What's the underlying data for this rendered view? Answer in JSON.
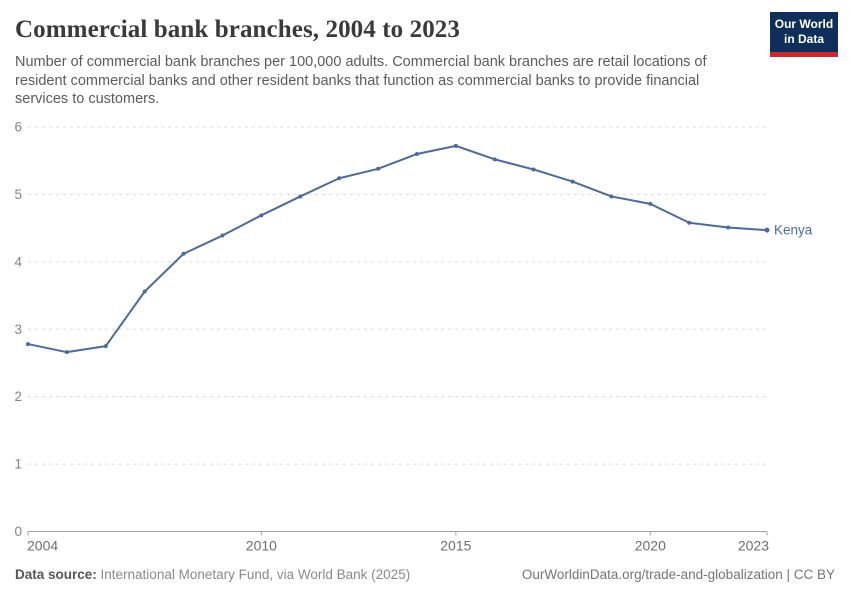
{
  "header": {
    "title": "Commercial bank branches, 2004 to 2023",
    "subtitle": "Number of commercial bank branches per 100,000 adults. Commercial bank branches are retail locations of resident commercial banks and other resident banks that function as commercial banks to provide financial services to customers."
  },
  "logo": {
    "line1": "Our World",
    "line2": "in Data",
    "bg_color": "#0f2e5a",
    "stripe_color": "#c92a2d"
  },
  "chart_data": {
    "type": "line",
    "title": "Commercial bank branches, 2004 to 2023",
    "xlabel": "",
    "ylabel": "",
    "ylim": [
      0,
      6
    ],
    "yticks": [
      0,
      1,
      2,
      3,
      4,
      5,
      6
    ],
    "xticks": [
      2004,
      2010,
      2015,
      2020,
      2023
    ],
    "grid": "horizontal-dashed",
    "legend_position": "end-of-line-label",
    "x": [
      2004,
      2005,
      2006,
      2007,
      2008,
      2009,
      2010,
      2011,
      2012,
      2013,
      2014,
      2015,
      2016,
      2017,
      2018,
      2019,
      2020,
      2021,
      2022,
      2023
    ],
    "series": [
      {
        "name": "Kenya",
        "color": "#4c6a9c",
        "values": [
          2.78,
          2.66,
          2.75,
          3.56,
          4.12,
          4.39,
          4.69,
          4.97,
          5.24,
          5.38,
          5.6,
          5.72,
          5.52,
          5.37,
          5.19,
          4.97,
          4.86,
          4.58,
          4.51,
          4.47
        ]
      }
    ],
    "colors": {
      "gridline": "#dcdcdc",
      "axis": "#a3a3a3",
      "tick_label": "#6e6e6e",
      "ytick_label": "#858585"
    }
  },
  "footer": {
    "datasource_label": "Data source:",
    "datasource_value": " International Monetary Fund, via World Bank (2025)",
    "credit": "OurWorldinData.org/trade-and-globalization | CC BY"
  }
}
